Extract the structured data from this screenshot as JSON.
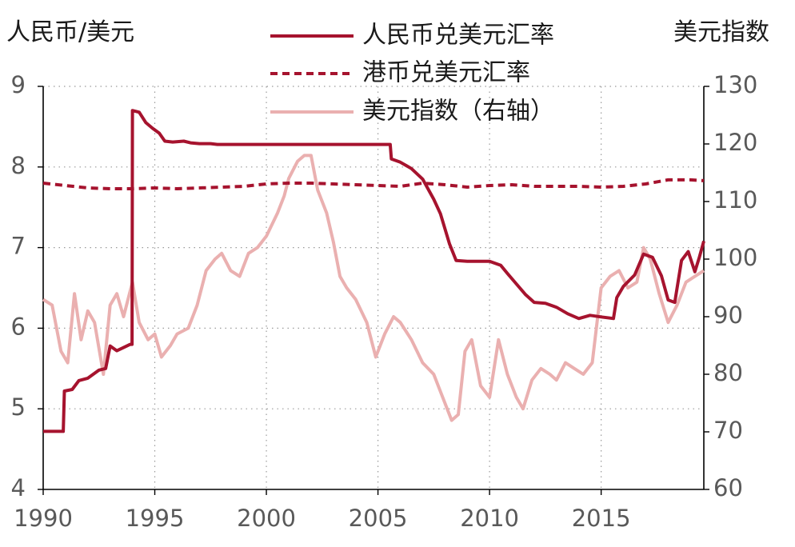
{
  "chart_data": {
    "type": "line",
    "left_axis": {
      "label": "人民币/美元",
      "ylim": [
        4,
        9
      ],
      "ticks": [
        4,
        5,
        6,
        7,
        8,
        9
      ]
    },
    "right_axis": {
      "label": "美元指数",
      "ylim": [
        60,
        130
      ],
      "ticks": [
        60,
        70,
        80,
        90,
        100,
        110,
        120,
        130
      ]
    },
    "x_axis": {
      "xlim": [
        1990,
        2019.6
      ],
      "ticks": [
        1990,
        1995,
        2000,
        2005,
        2010,
        2015
      ]
    },
    "grid": "dotted-vertical-and-horizontal",
    "legend_placement": "top-center",
    "series": [
      {
        "name": "人民币兑美元汇率",
        "axis": "left",
        "style": "solid",
        "color": "#a6132e",
        "points": [
          [
            1990.0,
            4.72
          ],
          [
            1990.9,
            4.72
          ],
          [
            1990.95,
            5.22
          ],
          [
            1991.3,
            5.24
          ],
          [
            1991.6,
            5.35
          ],
          [
            1992.0,
            5.38
          ],
          [
            1992.5,
            5.48
          ],
          [
            1992.8,
            5.5
          ],
          [
            1993.0,
            5.78
          ],
          [
            1993.3,
            5.72
          ],
          [
            1993.6,
            5.76
          ],
          [
            1993.9,
            5.8
          ],
          [
            1993.98,
            5.8
          ],
          [
            1994.0,
            8.7
          ],
          [
            1994.3,
            8.68
          ],
          [
            1994.6,
            8.55
          ],
          [
            1994.9,
            8.48
          ],
          [
            1995.2,
            8.42
          ],
          [
            1995.45,
            8.32
          ],
          [
            1995.8,
            8.31
          ],
          [
            1996.3,
            8.32
          ],
          [
            1996.6,
            8.3
          ],
          [
            1997.0,
            8.29
          ],
          [
            1997.5,
            8.29
          ],
          [
            1997.8,
            8.28
          ],
          [
            1998.5,
            8.28
          ],
          [
            2000.0,
            8.28
          ],
          [
            2002.0,
            8.28
          ],
          [
            2004.0,
            8.28
          ],
          [
            2005.55,
            8.28
          ],
          [
            2005.6,
            8.1
          ],
          [
            2006.0,
            8.06
          ],
          [
            2006.5,
            7.98
          ],
          [
            2007.0,
            7.85
          ],
          [
            2007.5,
            7.6
          ],
          [
            2007.8,
            7.42
          ],
          [
            2008.2,
            7.05
          ],
          [
            2008.5,
            6.84
          ],
          [
            2009.0,
            6.83
          ],
          [
            2010.0,
            6.83
          ],
          [
            2010.5,
            6.78
          ],
          [
            2010.8,
            6.68
          ],
          [
            2011.2,
            6.55
          ],
          [
            2011.6,
            6.42
          ],
          [
            2012.0,
            6.32
          ],
          [
            2012.5,
            6.31
          ],
          [
            2013.0,
            6.26
          ],
          [
            2013.5,
            6.18
          ],
          [
            2014.0,
            6.12
          ],
          [
            2014.5,
            6.16
          ],
          [
            2015.0,
            6.14
          ],
          [
            2015.55,
            6.12
          ],
          [
            2015.7,
            6.38
          ],
          [
            2016.0,
            6.52
          ],
          [
            2016.5,
            6.66
          ],
          [
            2016.9,
            6.92
          ],
          [
            2017.3,
            6.88
          ],
          [
            2017.7,
            6.65
          ],
          [
            2018.0,
            6.35
          ],
          [
            2018.3,
            6.32
          ],
          [
            2018.6,
            6.84
          ],
          [
            2018.9,
            6.95
          ],
          [
            2019.2,
            6.7
          ],
          [
            2019.4,
            6.88
          ],
          [
            2019.6,
            7.08
          ]
        ]
      },
      {
        "name": "港币兑美元汇率",
        "axis": "left",
        "style": "dashed",
        "color": "#a6132e",
        "points": [
          [
            1990.0,
            7.8
          ],
          [
            1991.0,
            7.77
          ],
          [
            1992.0,
            7.74
          ],
          [
            1993.0,
            7.73
          ],
          [
            1994.0,
            7.73
          ],
          [
            1995.0,
            7.74
          ],
          [
            1996.0,
            7.73
          ],
          [
            1997.0,
            7.74
          ],
          [
            1998.0,
            7.75
          ],
          [
            1999.0,
            7.76
          ],
          [
            2000.0,
            7.79
          ],
          [
            2001.0,
            7.8
          ],
          [
            2002.0,
            7.8
          ],
          [
            2003.0,
            7.79
          ],
          [
            2004.0,
            7.78
          ],
          [
            2005.0,
            7.77
          ],
          [
            2006.0,
            7.76
          ],
          [
            2007.0,
            7.8
          ],
          [
            2008.0,
            7.78
          ],
          [
            2009.0,
            7.75
          ],
          [
            2010.0,
            7.77
          ],
          [
            2011.0,
            7.78
          ],
          [
            2012.0,
            7.76
          ],
          [
            2013.0,
            7.76
          ],
          [
            2014.0,
            7.76
          ],
          [
            2015.0,
            7.75
          ],
          [
            2016.0,
            7.76
          ],
          [
            2017.0,
            7.79
          ],
          [
            2018.0,
            7.84
          ],
          [
            2019.0,
            7.84
          ],
          [
            2019.6,
            7.83
          ]
        ]
      },
      {
        "name": "美元指数（右轴）",
        "axis": "right",
        "style": "solid",
        "color": "#eab0b0",
        "points": [
          [
            1990.0,
            93
          ],
          [
            1990.4,
            92
          ],
          [
            1990.8,
            84
          ],
          [
            1991.1,
            82
          ],
          [
            1991.4,
            94
          ],
          [
            1991.7,
            86
          ],
          [
            1992.0,
            91
          ],
          [
            1992.3,
            89
          ],
          [
            1992.7,
            80
          ],
          [
            1993.0,
            92
          ],
          [
            1993.3,
            94
          ],
          [
            1993.6,
            90
          ],
          [
            1994.0,
            96
          ],
          [
            1994.3,
            89
          ],
          [
            1994.7,
            86
          ],
          [
            1995.0,
            87
          ],
          [
            1995.3,
            83
          ],
          [
            1995.7,
            85
          ],
          [
            1996.0,
            87
          ],
          [
            1996.5,
            88
          ],
          [
            1996.9,
            92
          ],
          [
            1997.3,
            98
          ],
          [
            1997.7,
            100
          ],
          [
            1998.0,
            101
          ],
          [
            1998.4,
            98
          ],
          [
            1998.8,
            97
          ],
          [
            1999.2,
            101
          ],
          [
            1999.6,
            102
          ],
          [
            2000.0,
            104
          ],
          [
            2000.5,
            108
          ],
          [
            2000.8,
            111
          ],
          [
            2001.0,
            114
          ],
          [
            2001.4,
            117
          ],
          [
            2001.7,
            118
          ],
          [
            2002.0,
            118
          ],
          [
            2002.3,
            112
          ],
          [
            2002.7,
            108
          ],
          [
            2003.0,
            103
          ],
          [
            2003.3,
            97
          ],
          [
            2003.6,
            95
          ],
          [
            2004.0,
            93
          ],
          [
            2004.5,
            89
          ],
          [
            2004.9,
            83
          ],
          [
            2005.3,
            87
          ],
          [
            2005.7,
            90
          ],
          [
            2006.0,
            89
          ],
          [
            2006.5,
            86
          ],
          [
            2007.0,
            82
          ],
          [
            2007.5,
            80
          ],
          [
            2007.9,
            76
          ],
          [
            2008.3,
            72
          ],
          [
            2008.6,
            73
          ],
          [
            2008.9,
            84
          ],
          [
            2009.2,
            86
          ],
          [
            2009.6,
            78
          ],
          [
            2010.0,
            76
          ],
          [
            2010.4,
            86
          ],
          [
            2010.8,
            80
          ],
          [
            2011.2,
            76
          ],
          [
            2011.5,
            74
          ],
          [
            2011.9,
            79
          ],
          [
            2012.3,
            81
          ],
          [
            2012.7,
            80
          ],
          [
            2013.0,
            79
          ],
          [
            2013.4,
            82
          ],
          [
            2013.8,
            81
          ],
          [
            2014.2,
            80
          ],
          [
            2014.6,
            82
          ],
          [
            2015.0,
            95
          ],
          [
            2015.4,
            97
          ],
          [
            2015.8,
            98
          ],
          [
            2016.2,
            95
          ],
          [
            2016.6,
            96
          ],
          [
            2016.9,
            102
          ],
          [
            2017.2,
            100
          ],
          [
            2017.6,
            94
          ],
          [
            2018.0,
            89
          ],
          [
            2018.4,
            92
          ],
          [
            2018.8,
            96
          ],
          [
            2019.2,
            97
          ],
          [
            2019.6,
            98
          ]
        ]
      }
    ]
  }
}
